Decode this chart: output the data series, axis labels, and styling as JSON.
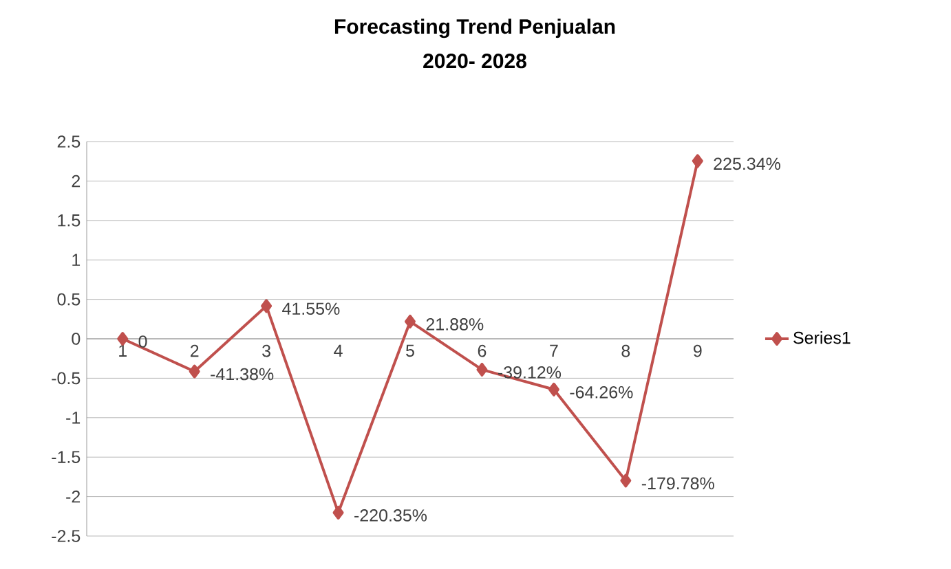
{
  "chart_data": {
    "type": "line",
    "title": "Forecasting Trend Penjualan",
    "subtitle": "2020- 2028",
    "categories": [
      "1",
      "2",
      "3",
      "4",
      "5",
      "6",
      "7",
      "8",
      "9"
    ],
    "series": [
      {
        "name": "Series1",
        "color": "#c0504d",
        "values": [
          0,
          -0.4138,
          0.4155,
          -2.2035,
          0.2188,
          -0.3912,
          -0.6426,
          -1.7978,
          2.2534
        ],
        "value_labels": [
          "0",
          "-41.38%",
          "41.55%",
          "-220.35%",
          "21.88%",
          "-39.12%",
          "-64.26%",
          "-179.78%",
          "225.34%"
        ]
      }
    ],
    "ylim": [
      -2.5,
      2.5
    ],
    "yticks": [
      -2.5,
      -2,
      -1.5,
      -1,
      -0.5,
      0,
      0.5,
      1,
      1.5,
      2,
      2.5
    ],
    "grid": "y",
    "legend": "right",
    "marker": "diamond",
    "line_style": "solid"
  }
}
